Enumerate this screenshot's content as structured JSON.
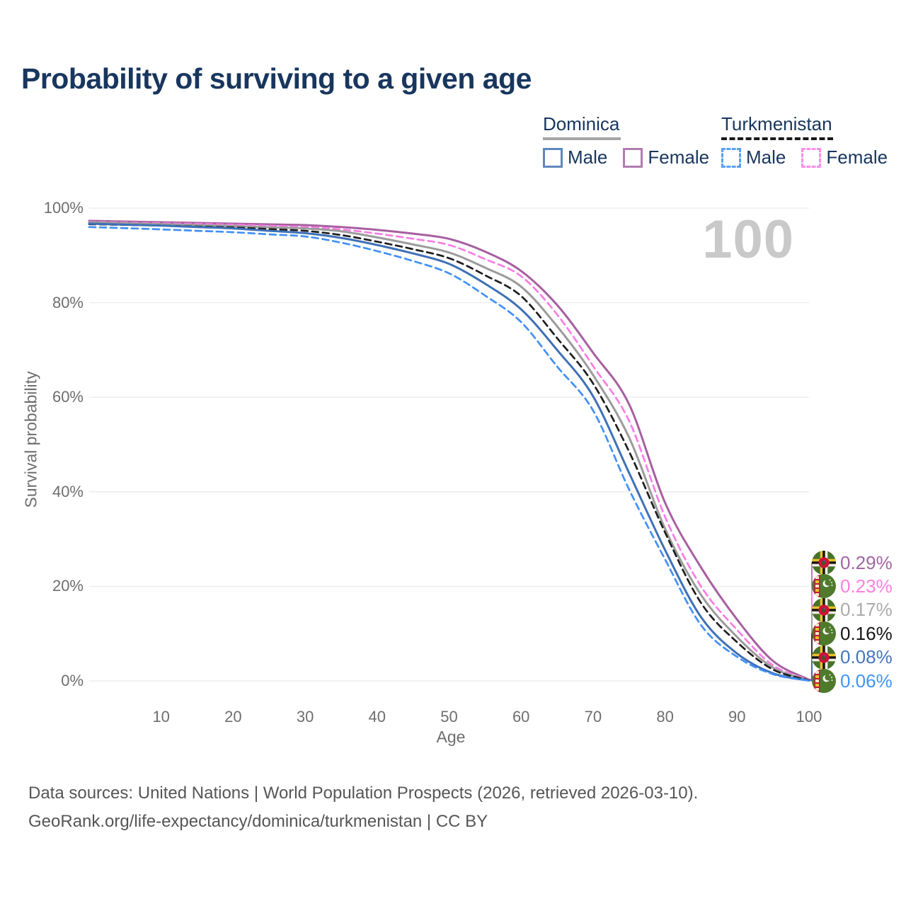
{
  "title": "Probability of surviving to a given age",
  "watermark": "100",
  "legend": {
    "groups": [
      {
        "label": "Dominica",
        "underline_style": "solid",
        "underline_color": "#a6a6a6",
        "items": [
          {
            "label": "Male",
            "swatch_color": "#5f88be",
            "swatch_style": "solid"
          },
          {
            "label": "Female",
            "swatch_color": "#b27cb2",
            "swatch_style": "solid"
          }
        ]
      },
      {
        "label": "Turkmenistan",
        "underline_style": "dashed",
        "underline_color": "#1a1a1a",
        "items": [
          {
            "label": "Male",
            "swatch_color": "#57a0f8",
            "swatch_style": "dashed"
          },
          {
            "label": "Female",
            "swatch_color": "#fc8eea",
            "swatch_style": "dashed"
          }
        ]
      }
    ]
  },
  "chart_data": {
    "type": "line",
    "title": "Probability of surviving to a given age",
    "xlabel": "Age",
    "ylabel": "Survival probability",
    "xlim": [
      0,
      100
    ],
    "ylim": [
      0,
      100
    ],
    "grid": true,
    "legend_position": "top-right",
    "x_ticks": [
      {
        "value": 10,
        "label": "10"
      },
      {
        "value": 20,
        "label": "20"
      },
      {
        "value": 30,
        "label": "30"
      },
      {
        "value": 40,
        "label": "40"
      },
      {
        "value": 50,
        "label": "50"
      },
      {
        "value": 60,
        "label": "60"
      },
      {
        "value": 70,
        "label": "70"
      },
      {
        "value": 80,
        "label": "80"
      },
      {
        "value": 90,
        "label": "90"
      },
      {
        "value": 100,
        "label": "100"
      }
    ],
    "y_ticks": [
      {
        "value": 0,
        "label": "0%"
      },
      {
        "value": 20,
        "label": "20%"
      },
      {
        "value": 40,
        "label": "40%"
      },
      {
        "value": 60,
        "label": "60%"
      },
      {
        "value": 80,
        "label": "80%"
      },
      {
        "value": 100,
        "label": "100%"
      }
    ],
    "ages": [
      0,
      5,
      10,
      15,
      20,
      25,
      30,
      35,
      40,
      45,
      50,
      55,
      60,
      65,
      70,
      75,
      80,
      85,
      90,
      95,
      100
    ],
    "series": [
      {
        "name": "Dominica Female",
        "country": "Dominica",
        "sex": "Female",
        "style": "solid",
        "color": "#a75fa0",
        "end_label": "0.29%",
        "end_label_color": "#a466a4",
        "flag": "dominica",
        "values": [
          97.3,
          97.15,
          97.0,
          96.85,
          96.7,
          96.55,
          96.4,
          96.0,
          95.4,
          94.6,
          93.5,
          90.8,
          86.7,
          79.5,
          69.4,
          58.5,
          37.7,
          24.0,
          13.0,
          4.2,
          0.29
        ]
      },
      {
        "name": "Turkmenistan Female",
        "country": "Turkmenistan",
        "sex": "Female",
        "style": "dashed",
        "color": "#fb7ce5",
        "end_label": "0.23%",
        "end_label_color": "#ff7fe1",
        "flag": "turkmenistan",
        "values": [
          97.1,
          96.95,
          96.8,
          96.65,
          96.5,
          96.25,
          96.0,
          95.5,
          94.6,
          93.5,
          92.2,
          89.2,
          85.6,
          77.5,
          66.6,
          55.0,
          34.7,
          20.0,
          10.8,
          3.3,
          0.23
        ]
      },
      {
        "name": "Dominica",
        "country": "Dominica",
        "sex": "Both sexes",
        "style": "solid",
        "color": "#9b9b9b",
        "end_label": "0.17%",
        "end_label_color": "#ababab",
        "flag": "dominica",
        "values": [
          97.0,
          96.8,
          96.6,
          96.4,
          96.2,
          95.95,
          95.7,
          95.1,
          93.8,
          92.3,
          90.6,
          87.4,
          83.4,
          75.0,
          64.7,
          51.5,
          32.2,
          18.2,
          9.3,
          2.8,
          0.17
        ]
      },
      {
        "name": "Turkmenistan",
        "country": "Turkmenistan",
        "sex": "Both sexes",
        "style": "dashed",
        "color": "#1e1e1e",
        "end_label": "0.16%",
        "end_label_color": "#161616",
        "flag": "turkmenistan",
        "values": [
          96.6,
          96.45,
          96.3,
          96.1,
          95.9,
          95.55,
          95.2,
          94.3,
          92.9,
          91.3,
          89.4,
          85.8,
          81.4,
          72.5,
          62.9,
          48.5,
          31.4,
          16.5,
          8.2,
          2.4,
          0.16
        ]
      },
      {
        "name": "Dominica Male",
        "country": "Dominica",
        "sex": "Male",
        "style": "solid",
        "color": "#3e70b6",
        "end_label": "0.08%",
        "end_label_color": "#4376c1",
        "flag": "dominica",
        "values": [
          96.7,
          96.5,
          96.3,
          96.0,
          95.7,
          95.2,
          94.7,
          93.7,
          92.2,
          90.4,
          88.2,
          84.0,
          78.6,
          70.0,
          60.2,
          44.0,
          27.7,
          13.5,
          5.8,
          1.6,
          0.08
        ]
      },
      {
        "name": "Turkmenistan Male",
        "country": "Turkmenistan",
        "sex": "Male",
        "style": "dashed",
        "color": "#4190f7",
        "end_label": "0.06%",
        "end_label_color": "#4194f8",
        "flag": "turkmenistan",
        "values": [
          96.0,
          95.75,
          95.5,
          95.2,
          94.9,
          94.45,
          94.0,
          92.7,
          90.9,
          88.8,
          86.2,
          81.5,
          75.9,
          66.5,
          57.2,
          40.5,
          25.7,
          11.8,
          5.1,
          1.4,
          0.06
        ]
      }
    ]
  },
  "footer": {
    "line1": "Data sources: United Nations | World Population Prospects (2026, retrieved 2026-03-10).",
    "line2": "GeoRank.org/life-expectancy/dominica/turkmenistan | CC BY"
  }
}
